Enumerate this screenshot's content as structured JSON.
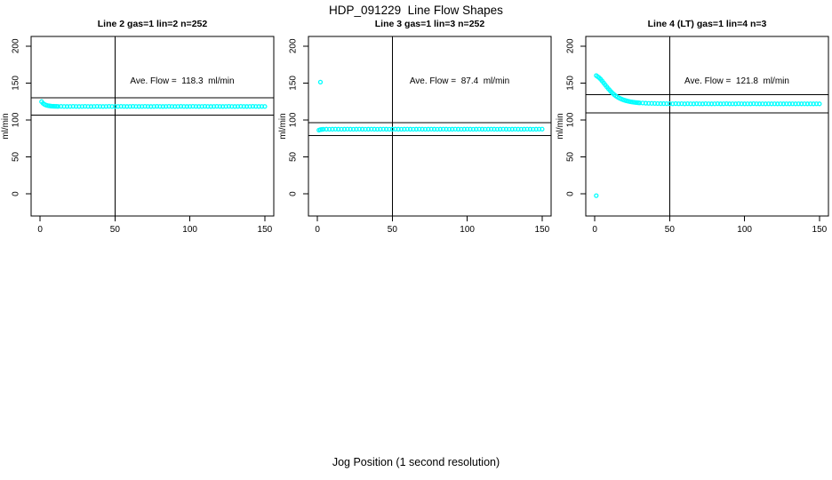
{
  "figure": {
    "title": "HDP_091229  Line Flow Shapes",
    "xlabel": "Jog Position (1 second resolution)",
    "background": "#ffffff",
    "marker_color": "#00ffff",
    "axis_color": "#000000"
  },
  "chart_data": [
    {
      "type": "scatter",
      "title": "Line 2 gas=1 lin=2 n=252",
      "annotation": "Ave. Flow =  118.3  ml/min",
      "ave_flow_ml_min": 118.3,
      "n": 252,
      "ylabel": "ml/min",
      "xlim": [
        -6,
        156
      ],
      "ylim": [
        -30,
        213
      ],
      "xticks": [
        0,
        50,
        100,
        150
      ],
      "yticks": [
        0,
        50,
        100,
        150,
        200
      ],
      "vline_x": 50,
      "hlines": [
        130.1,
        106.5
      ],
      "marker_color": "#00ffff",
      "points": [
        [
          1,
          124.8
        ],
        [
          2,
          122.4
        ],
        [
          3,
          121.0
        ],
        [
          4,
          120.1
        ],
        [
          5,
          119.5
        ],
        [
          6,
          119.1
        ],
        [
          7,
          118.8
        ],
        [
          8,
          118.6
        ],
        [
          9,
          118.5
        ],
        [
          10,
          118.4
        ],
        [
          11,
          118.4
        ],
        [
          12,
          118.3
        ],
        [
          14,
          118.4
        ],
        [
          16,
          118.3
        ],
        [
          18,
          118.2
        ],
        [
          20,
          118.3
        ],
        [
          22,
          118.4
        ],
        [
          24,
          118.3
        ],
        [
          26,
          118.2
        ],
        [
          28,
          118.3
        ],
        [
          30,
          118.4
        ],
        [
          32,
          118.3
        ],
        [
          34,
          118.2
        ],
        [
          36,
          118.3
        ],
        [
          38,
          118.4
        ],
        [
          40,
          118.3
        ],
        [
          42,
          118.2
        ],
        [
          44,
          118.3
        ],
        [
          46,
          118.4
        ],
        [
          48,
          118.3
        ],
        [
          50,
          118.2
        ],
        [
          52,
          118.3
        ],
        [
          54,
          118.4
        ],
        [
          56,
          118.3
        ],
        [
          58,
          118.2
        ],
        [
          60,
          118.3
        ],
        [
          62,
          118.4
        ],
        [
          64,
          118.3
        ],
        [
          66,
          118.2
        ],
        [
          68,
          118.3
        ],
        [
          70,
          118.4
        ],
        [
          72,
          118.3
        ],
        [
          74,
          118.2
        ],
        [
          76,
          118.3
        ],
        [
          78,
          118.4
        ],
        [
          80,
          118.3
        ],
        [
          82,
          118.2
        ],
        [
          84,
          118.3
        ],
        [
          86,
          118.4
        ],
        [
          88,
          118.3
        ],
        [
          90,
          118.2
        ],
        [
          92,
          118.3
        ],
        [
          94,
          118.4
        ],
        [
          96,
          118.3
        ],
        [
          98,
          118.2
        ],
        [
          100,
          118.3
        ],
        [
          102,
          118.4
        ],
        [
          104,
          118.3
        ],
        [
          106,
          118.2
        ],
        [
          108,
          118.3
        ],
        [
          110,
          118.4
        ],
        [
          112,
          118.3
        ],
        [
          114,
          118.2
        ],
        [
          116,
          118.3
        ],
        [
          118,
          118.4
        ],
        [
          120,
          118.3
        ],
        [
          122,
          118.2
        ],
        [
          124,
          118.3
        ],
        [
          126,
          118.4
        ],
        [
          128,
          118.3
        ],
        [
          130,
          118.2
        ],
        [
          132,
          118.3
        ],
        [
          134,
          118.4
        ],
        [
          136,
          118.3
        ],
        [
          138,
          118.2
        ],
        [
          140,
          118.3
        ],
        [
          142,
          118.4
        ],
        [
          144,
          118.3
        ],
        [
          146,
          118.2
        ],
        [
          148,
          118.3
        ],
        [
          150,
          118.3
        ]
      ]
    },
    {
      "type": "scatter",
      "title": "Line 3 gas=1 lin=3 n=252",
      "annotation": "Ave. Flow =  87.4  ml/min",
      "ave_flow_ml_min": 87.4,
      "n": 252,
      "ylabel": "ml/min",
      "xlim": [
        -6,
        156
      ],
      "ylim": [
        -30,
        213
      ],
      "xticks": [
        0,
        50,
        100,
        150
      ],
      "yticks": [
        0,
        50,
        100,
        150,
        200
      ],
      "vline_x": 50,
      "hlines": [
        96.1,
        78.7
      ],
      "marker_color": "#00ffff",
      "points": [
        [
          2,
          151.2
        ],
        [
          1,
          86.2
        ],
        [
          2,
          86.9
        ],
        [
          3,
          87.2
        ],
        [
          4,
          87.4
        ],
        [
          6,
          87.5
        ],
        [
          8,
          87.4
        ],
        [
          10,
          87.5
        ],
        [
          12,
          87.6
        ],
        [
          14,
          87.5
        ],
        [
          16,
          87.4
        ],
        [
          18,
          87.5
        ],
        [
          20,
          87.6
        ],
        [
          22,
          87.5
        ],
        [
          24,
          87.4
        ],
        [
          26,
          87.5
        ],
        [
          28,
          87.6
        ],
        [
          30,
          87.5
        ],
        [
          32,
          87.4
        ],
        [
          34,
          87.5
        ],
        [
          36,
          87.6
        ],
        [
          38,
          87.5
        ],
        [
          40,
          87.4
        ],
        [
          42,
          87.5
        ],
        [
          44,
          87.6
        ],
        [
          46,
          87.5
        ],
        [
          48,
          87.4
        ],
        [
          50,
          87.5
        ],
        [
          52,
          87.6
        ],
        [
          54,
          87.5
        ],
        [
          56,
          87.4
        ],
        [
          58,
          87.5
        ],
        [
          60,
          87.6
        ],
        [
          62,
          87.5
        ],
        [
          64,
          87.4
        ],
        [
          66,
          87.5
        ],
        [
          68,
          87.6
        ],
        [
          70,
          87.5
        ],
        [
          72,
          87.4
        ],
        [
          74,
          87.5
        ],
        [
          76,
          87.6
        ],
        [
          78,
          87.5
        ],
        [
          80,
          87.4
        ],
        [
          82,
          87.5
        ],
        [
          84,
          87.6
        ],
        [
          86,
          87.5
        ],
        [
          88,
          87.4
        ],
        [
          90,
          87.5
        ],
        [
          92,
          87.6
        ],
        [
          94,
          87.5
        ],
        [
          96,
          87.4
        ],
        [
          98,
          87.5
        ],
        [
          100,
          87.6
        ],
        [
          102,
          87.5
        ],
        [
          104,
          87.4
        ],
        [
          106,
          87.5
        ],
        [
          108,
          87.6
        ],
        [
          110,
          87.5
        ],
        [
          112,
          87.4
        ],
        [
          114,
          87.5
        ],
        [
          116,
          87.6
        ],
        [
          118,
          87.5
        ],
        [
          120,
          87.4
        ],
        [
          122,
          87.5
        ],
        [
          124,
          87.6
        ],
        [
          126,
          87.5
        ],
        [
          128,
          87.4
        ],
        [
          130,
          87.5
        ],
        [
          132,
          87.6
        ],
        [
          134,
          87.5
        ],
        [
          136,
          87.4
        ],
        [
          138,
          87.5
        ],
        [
          140,
          87.6
        ],
        [
          142,
          87.5
        ],
        [
          144,
          87.4
        ],
        [
          146,
          87.5
        ],
        [
          148,
          87.6
        ],
        [
          150,
          87.6
        ]
      ]
    },
    {
      "type": "scatter",
      "title": "Line 4 (LT) gas=1 lin=4 n=3",
      "annotation": "Ave. Flow =  121.8  ml/min",
      "ave_flow_ml_min": 121.8,
      "n": 3,
      "ylabel": "ml/min",
      "xlim": [
        -6,
        156
      ],
      "ylim": [
        -30,
        213
      ],
      "xticks": [
        0,
        50,
        100,
        150
      ],
      "yticks": [
        0,
        50,
        100,
        150,
        200
      ],
      "vline_x": 50,
      "hlines": [
        134.0,
        109.6
      ],
      "marker_color": "#00ffff",
      "points": [
        [
          1,
          -2.5
        ],
        [
          1,
          160.0
        ],
        [
          2,
          158.6
        ],
        [
          3,
          157.0
        ],
        [
          4,
          155.0
        ],
        [
          5,
          152.6
        ],
        [
          6,
          150.0
        ],
        [
          7,
          147.4
        ],
        [
          8,
          144.9
        ],
        [
          9,
          142.5
        ],
        [
          10,
          140.2
        ],
        [
          11,
          138.0
        ],
        [
          12,
          136.0
        ],
        [
          13,
          134.2
        ],
        [
          14,
          132.6
        ],
        [
          15,
          131.2
        ],
        [
          16,
          130.0
        ],
        [
          17,
          129.0
        ],
        [
          18,
          128.1
        ],
        [
          19,
          127.3
        ],
        [
          20,
          126.6
        ],
        [
          21,
          126.0
        ],
        [
          22,
          125.5
        ],
        [
          23,
          125.0
        ],
        [
          24,
          124.6
        ],
        [
          25,
          124.3
        ],
        [
          26,
          124.0
        ],
        [
          27,
          123.7
        ],
        [
          28,
          123.5
        ],
        [
          29,
          123.3
        ],
        [
          30,
          123.1
        ],
        [
          32,
          122.9
        ],
        [
          34,
          122.7
        ],
        [
          36,
          122.5
        ],
        [
          38,
          122.4
        ],
        [
          40,
          122.3
        ],
        [
          42,
          122.2
        ],
        [
          44,
          122.1
        ],
        [
          46,
          122.1
        ],
        [
          48,
          122.0
        ],
        [
          50,
          122.0
        ],
        [
          52,
          121.9
        ],
        [
          54,
          122.1
        ],
        [
          56,
          121.9
        ],
        [
          58,
          122.0
        ],
        [
          60,
          121.8
        ],
        [
          62,
          122.0
        ],
        [
          64,
          121.9
        ],
        [
          66,
          121.8
        ],
        [
          68,
          122.0
        ],
        [
          70,
          121.9
        ],
        [
          72,
          121.8
        ],
        [
          74,
          122.0
        ],
        [
          76,
          121.9
        ],
        [
          78,
          121.8
        ],
        [
          80,
          121.9
        ],
        [
          82,
          122.0
        ],
        [
          84,
          121.8
        ],
        [
          86,
          121.9
        ],
        [
          88,
          122.0
        ],
        [
          90,
          121.8
        ],
        [
          92,
          121.9
        ],
        [
          94,
          121.8
        ],
        [
          96,
          122.0
        ],
        [
          98,
          121.9
        ],
        [
          100,
          121.8
        ],
        [
          102,
          121.9
        ],
        [
          104,
          121.8
        ],
        [
          106,
          122.0
        ],
        [
          108,
          121.9
        ],
        [
          110,
          121.8
        ],
        [
          112,
          121.9
        ],
        [
          114,
          121.8
        ],
        [
          116,
          121.9
        ],
        [
          118,
          121.8
        ],
        [
          120,
          121.9
        ],
        [
          122,
          121.8
        ],
        [
          124,
          121.9
        ],
        [
          126,
          121.8
        ],
        [
          128,
          121.9
        ],
        [
          130,
          121.8
        ],
        [
          132,
          121.9
        ],
        [
          134,
          121.8
        ],
        [
          136,
          121.9
        ],
        [
          138,
          121.8
        ],
        [
          140,
          121.9
        ],
        [
          142,
          121.8
        ],
        [
          144,
          121.9
        ],
        [
          146,
          121.8
        ],
        [
          148,
          121.9
        ],
        [
          150,
          121.8
        ]
      ]
    }
  ]
}
